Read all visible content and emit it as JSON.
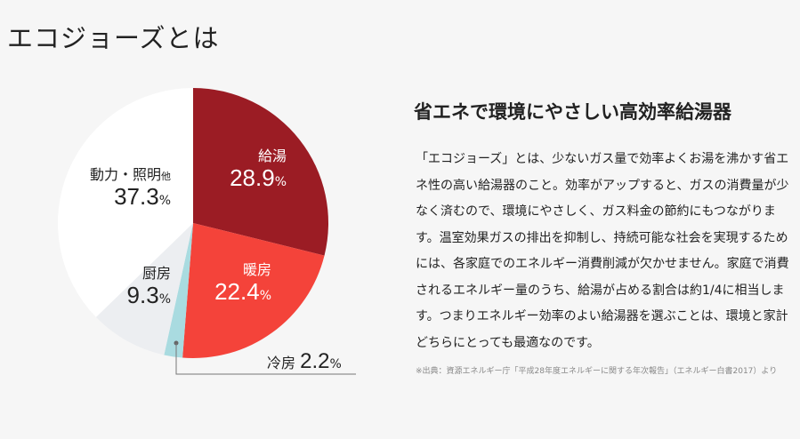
{
  "title": "エコジョーズとは",
  "chart_data": {
    "type": "pie",
    "title": "",
    "start": "top, clockwise",
    "slices": [
      {
        "label": "給湯",
        "value": 28.9,
        "display": "28.9",
        "unit": "%",
        "color": "#9b1c24"
      },
      {
        "label": "暖房",
        "value": 22.4,
        "display": "22.4",
        "unit": "%",
        "color": "#f4433a"
      },
      {
        "label": "冷房",
        "value": 2.2,
        "display": "2.2",
        "unit": "%",
        "color": "#a9dbe0"
      },
      {
        "label": "厨房",
        "value": 9.3,
        "display": "9.3",
        "unit": "%",
        "color": "#eceef1"
      },
      {
        "label": "動力・照明",
        "label_suffix": "他",
        "value": 37.3,
        "display": "37.3",
        "unit": "%",
        "color": "#ffffff"
      }
    ]
  },
  "heading": "省エネで環境にやさしい高効率給湯器",
  "paragraph": "「エコジョーズ」とは、少ないガス量で効率よくお湯を沸かす省エネ性の高い給湯器のこと。効率がアップすると、ガスの消費量が少なく済むので、環境にやさしく、ガス料金の節約にもつながります。温室効果ガスの排出を抑制し、持続可能な社会を実現するためには、各家庭でのエネルギー消費削減が欠かせません。家庭で消費されるエネルギー量のうち、給湯が占める割合は約1/4に相当します。つまりエネルギー効率のよい給湯器を選ぶことは、環境と家計どちらにとっても最適なのです。",
  "source_note": "※出典：資源エネルギー庁「平成28年度エネルギーに関する年次報告」（エネルギー白書2017）より"
}
